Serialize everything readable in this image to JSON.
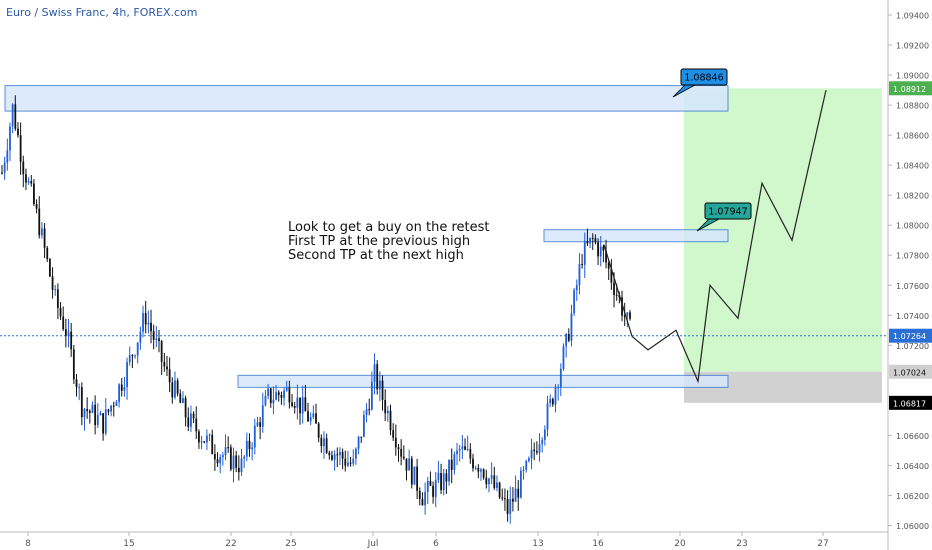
{
  "symbol": {
    "title": "Euro / Swiss Franc, 4h, FOREX.com"
  },
  "annotations": {
    "note_lines": [
      "Look to get a buy on the retest",
      "First TP at the previous high",
      "Second TP at the next high"
    ],
    "callout_tp2": "1.08846",
    "callout_tp1": "1.07947"
  },
  "price_axis": {
    "labels": [
      "1.09400",
      "1.09200",
      "1.09000",
      "1.08800",
      "1.08600",
      "1.08400",
      "1.08200",
      "1.08000",
      "1.07800",
      "1.07600",
      "1.07400",
      "1.07200",
      "1.06600",
      "1.06400",
      "1.06200",
      "1.06000"
    ],
    "current_price": "1.07264",
    "target_price": "1.08912",
    "entry_price": "1.07024",
    "stop_price": "1.06817"
  },
  "time_axis": {
    "labels": [
      "8",
      "15",
      "22",
      "25",
      "Jul",
      "6",
      "13",
      "16",
      "20",
      "23",
      "27"
    ]
  },
  "colors": {
    "bull": "#1f5fd6",
    "bear": "#111111",
    "zone_fill": "#d6e7fb",
    "zone_border": "#3f7fd0",
    "profit_zone": "#cff7c9",
    "loss_zone": "#d1d1d1",
    "callout_tp2": "#1f8fe6",
    "callout_tp1": "#26a69a",
    "target_badge": "#4caf50"
  },
  "chart_data": {
    "type": "candlestick",
    "title": "Euro / Swiss Franc, 4h, FOREX.com",
    "ylim": [
      1.0597,
      1.095
    ],
    "x_tick_labels": [
      "8",
      "15",
      "22",
      "25",
      "Jul",
      "6",
      "13",
      "16",
      "20",
      "23",
      "27"
    ],
    "ohlc_anchor_path": [
      {
        "x": 0,
        "close": 1.0835
      },
      {
        "x": 4,
        "close": 1.0878
      },
      {
        "x": 8,
        "close": 1.084
      },
      {
        "x": 14,
        "close": 1.08
      },
      {
        "x": 20,
        "close": 1.075
      },
      {
        "x": 24,
        "close": 1.073
      },
      {
        "x": 30,
        "close": 1.068
      },
      {
        "x": 38,
        "close": 1.0668
      },
      {
        "x": 46,
        "close": 1.07
      },
      {
        "x": 54,
        "close": 1.074
      },
      {
        "x": 62,
        "close": 1.07
      },
      {
        "x": 70,
        "close": 1.067
      },
      {
        "x": 80,
        "close": 1.065
      },
      {
        "x": 90,
        "close": 1.064
      },
      {
        "x": 100,
        "close": 1.0685
      },
      {
        "x": 108,
        "close": 1.069
      },
      {
        "x": 116,
        "close": 1.067
      },
      {
        "x": 124,
        "close": 1.065
      },
      {
        "x": 132,
        "close": 1.064
      },
      {
        "x": 140,
        "close": 1.07
      },
      {
        "x": 150,
        "close": 1.065
      },
      {
        "x": 158,
        "close": 1.062
      },
      {
        "x": 166,
        "close": 1.063
      },
      {
        "x": 172,
        "close": 1.065
      },
      {
        "x": 180,
        "close": 1.064
      },
      {
        "x": 190,
        "close": 1.061
      },
      {
        "x": 198,
        "close": 1.064
      },
      {
        "x": 206,
        "close": 1.068
      },
      {
        "x": 212,
        "close": 1.072
      },
      {
        "x": 218,
        "close": 1.078
      },
      {
        "x": 222,
        "close": 1.079
      },
      {
        "x": 226,
        "close": 1.078
      },
      {
        "x": 232,
        "close": 1.075
      },
      {
        "x": 236,
        "close": 1.073
      }
    ],
    "zones": [
      {
        "name": "resistance-high",
        "y_top": 1.0893,
        "y_bottom": 1.0876
      },
      {
        "name": "previous-high",
        "y_top": 1.0797,
        "y_bottom": 1.0789
      },
      {
        "name": "retest-support",
        "y_top": 1.07,
        "y_bottom": 1.0692
      }
    ],
    "position": {
      "entry": 1.07024,
      "target": 1.08912,
      "stop": 1.06817
    },
    "projection_path": [
      1.0726,
      1.0717,
      1.073,
      1.0696,
      1.076,
      1.0738,
      1.0828,
      1.079,
      1.089
    ]
  }
}
